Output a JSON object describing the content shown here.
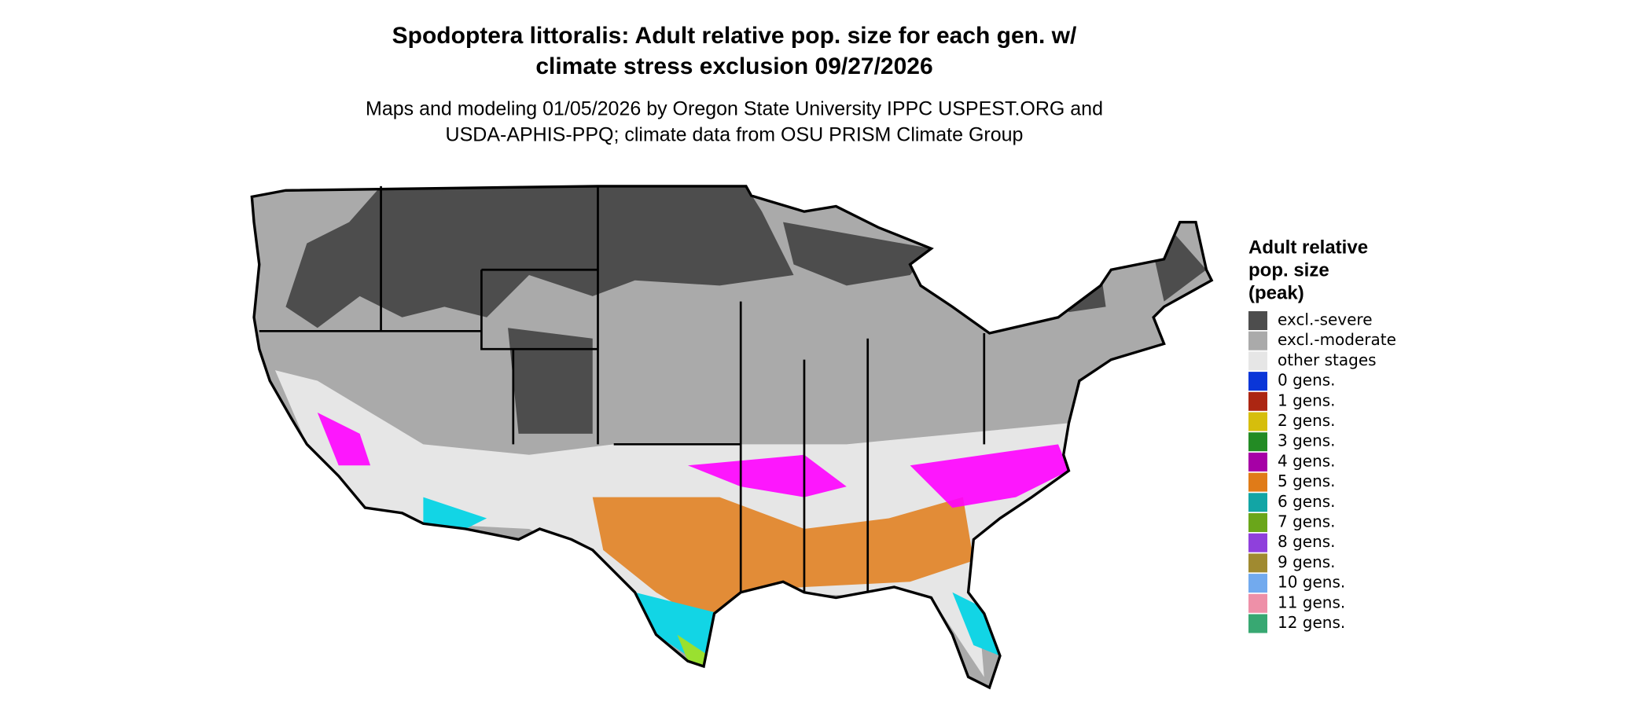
{
  "header": {
    "title": [
      "Spodoptera littoralis: Adult relative pop. size for each gen. w/",
      "climate stress exclusion 09/27/2026"
    ],
    "subtitle": [
      "Maps and modeling 01/05/2026 by Oregon State University IPPC USPEST.ORG and",
      "USDA-APHIS-PPQ; climate data from OSU PRISM Climate Group"
    ]
  },
  "legend": {
    "title": [
      "Adult relative",
      "pop. size",
      "(peak)"
    ],
    "items": [
      {
        "label": "excl.-severe",
        "color": "#4d4d4d"
      },
      {
        "label": "excl.-moderate",
        "color": "#aaaaaa"
      },
      {
        "label": "other stages",
        "color": "#e6e6e6"
      },
      {
        "label": "0 gens.",
        "color": "#0a36d8"
      },
      {
        "label": "1 gens.",
        "color": "#ac2612"
      },
      {
        "label": "2 gens.",
        "color": "#d6be0c"
      },
      {
        "label": "3 gens.",
        "color": "#238b24"
      },
      {
        "label": "4 gens.",
        "color": "#a600a6"
      },
      {
        "label": "5 gens.",
        "color": "#e07b18"
      },
      {
        "label": "6 gens.",
        "color": "#12a5a5"
      },
      {
        "label": "7 gens.",
        "color": "#6aa61a"
      },
      {
        "label": "8 gens.",
        "color": "#8f40dc"
      },
      {
        "label": "9 gens.",
        "color": "#a08a30"
      },
      {
        "label": "10 gens.",
        "color": "#72aaee"
      },
      {
        "label": "11 gens.",
        "color": "#ee90a8"
      },
      {
        "label": "12 gens.",
        "color": "#38a872"
      }
    ]
  }
}
